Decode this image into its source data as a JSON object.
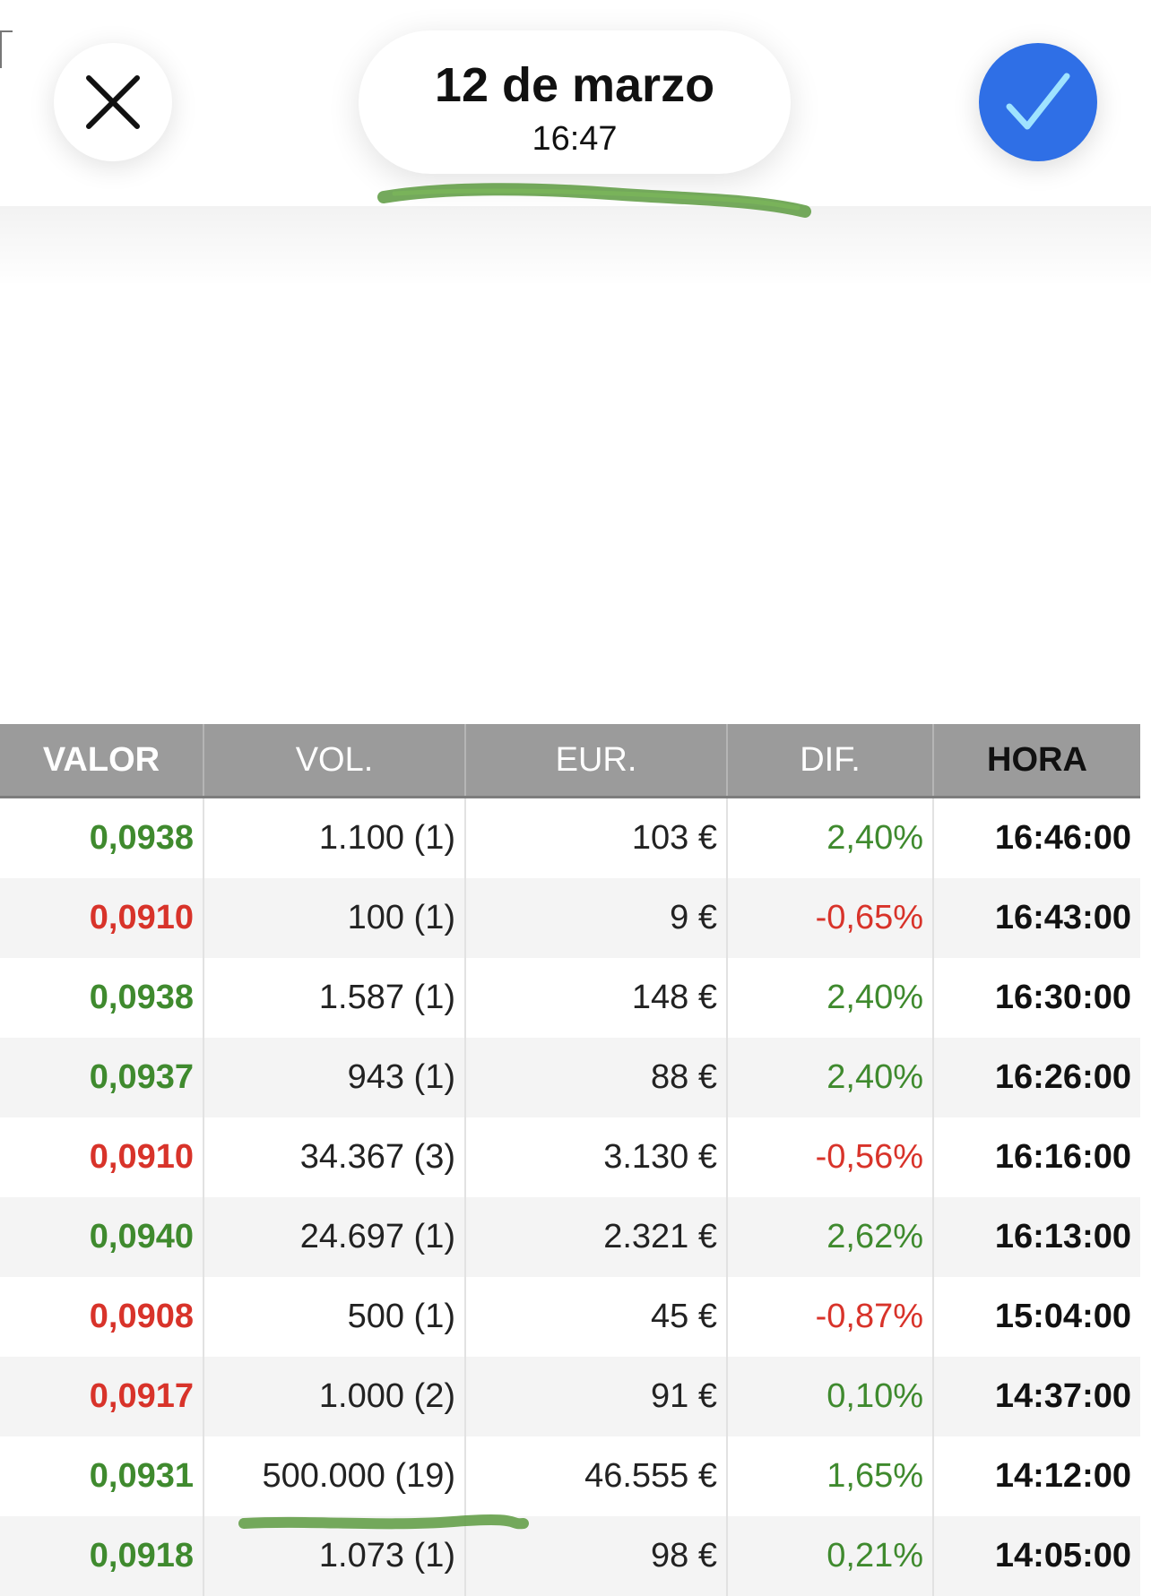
{
  "header": {
    "date": "12 de marzo",
    "time": "16:47",
    "close_icon": "close-icon",
    "confirm_icon": "checkmark-icon",
    "accent_color": "#2f6fe6"
  },
  "table": {
    "columns": [
      "VALOR",
      "VOL.",
      "EUR.",
      "DIF.",
      "HORA"
    ],
    "rows": [
      {
        "valor": "0,0938",
        "vol": "1.100 (1)",
        "eur": "103 €",
        "dif": "2,40%",
        "hora": "16:46:00",
        "trend": "up"
      },
      {
        "valor": "0,0910",
        "vol": "100 (1)",
        "eur": "9 €",
        "dif": "-0,65%",
        "hora": "16:43:00",
        "trend": "down"
      },
      {
        "valor": "0,0938",
        "vol": "1.587 (1)",
        "eur": "148 €",
        "dif": "2,40%",
        "hora": "16:30:00",
        "trend": "up"
      },
      {
        "valor": "0,0937",
        "vol": "943 (1)",
        "eur": "88 €",
        "dif": "2,40%",
        "hora": "16:26:00",
        "trend": "up"
      },
      {
        "valor": "0,0910",
        "vol": "34.367 (3)",
        "eur": "3.130 €",
        "dif": "-0,56%",
        "hora": "16:16:00",
        "trend": "down"
      },
      {
        "valor": "0,0940",
        "vol": "24.697 (1)",
        "eur": "2.321 €",
        "dif": "2,62%",
        "hora": "16:13:00",
        "trend": "up"
      },
      {
        "valor": "0,0908",
        "vol": "500 (1)",
        "eur": "45 €",
        "dif": "-0,87%",
        "hora": "15:04:00",
        "trend": "down"
      },
      {
        "valor": "0,0917",
        "vol": "1.000 (2)",
        "eur": "91 €",
        "dif": "0,10%",
        "hora": "14:37:00",
        "trend": "mixed"
      },
      {
        "valor": "0,0931",
        "vol": "500.000 (19)",
        "eur": "46.555 €",
        "dif": "1,65%",
        "hora": "14:12:00",
        "trend": "up"
      },
      {
        "valor": "0,0918",
        "vol": "1.073 (1)",
        "eur": "98 €",
        "dif": "0,21%",
        "hora": "14:05:00",
        "trend": "up"
      }
    ],
    "colors": {
      "up": "#3f8a2e",
      "down": "#d8332a",
      "header_bg": "#9b9b9b"
    }
  }
}
